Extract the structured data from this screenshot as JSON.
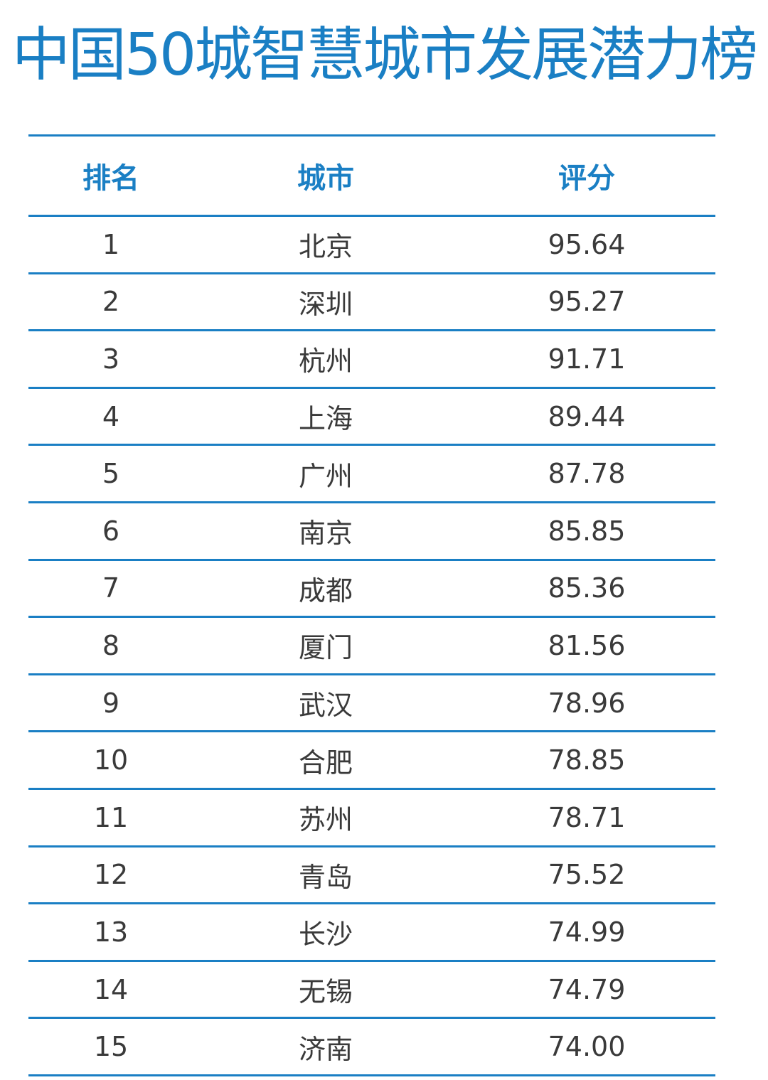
{
  "title": "中国50城智慧城市发展潜力榜",
  "chart_data": {
    "type": "table",
    "title": "中国50城智慧城市发展潜力榜",
    "columns": [
      "排名",
      "城市",
      "评分"
    ],
    "rows": [
      [
        "1",
        "北京",
        "95.64"
      ],
      [
        "2",
        "深圳",
        "95.27"
      ],
      [
        "3",
        "杭州",
        "91.71"
      ],
      [
        "4",
        "上海",
        "89.44"
      ],
      [
        "5",
        "广州",
        "87.78"
      ],
      [
        "6",
        "南京",
        "85.85"
      ],
      [
        "7",
        "成都",
        "85.36"
      ],
      [
        "8",
        "厦门",
        "81.56"
      ],
      [
        "9",
        "武汉",
        "78.96"
      ],
      [
        "10",
        "合肥",
        "78.85"
      ],
      [
        "11",
        "苏州",
        "78.71"
      ],
      [
        "12",
        "青岛",
        "75.52"
      ],
      [
        "13",
        "长沙",
        "74.99"
      ],
      [
        "14",
        "无锡",
        "74.79"
      ],
      [
        "15",
        "济南",
        "74.00"
      ]
    ]
  },
  "colors": {
    "accent": "#1a7fc4",
    "text": "#3a3a3a"
  }
}
